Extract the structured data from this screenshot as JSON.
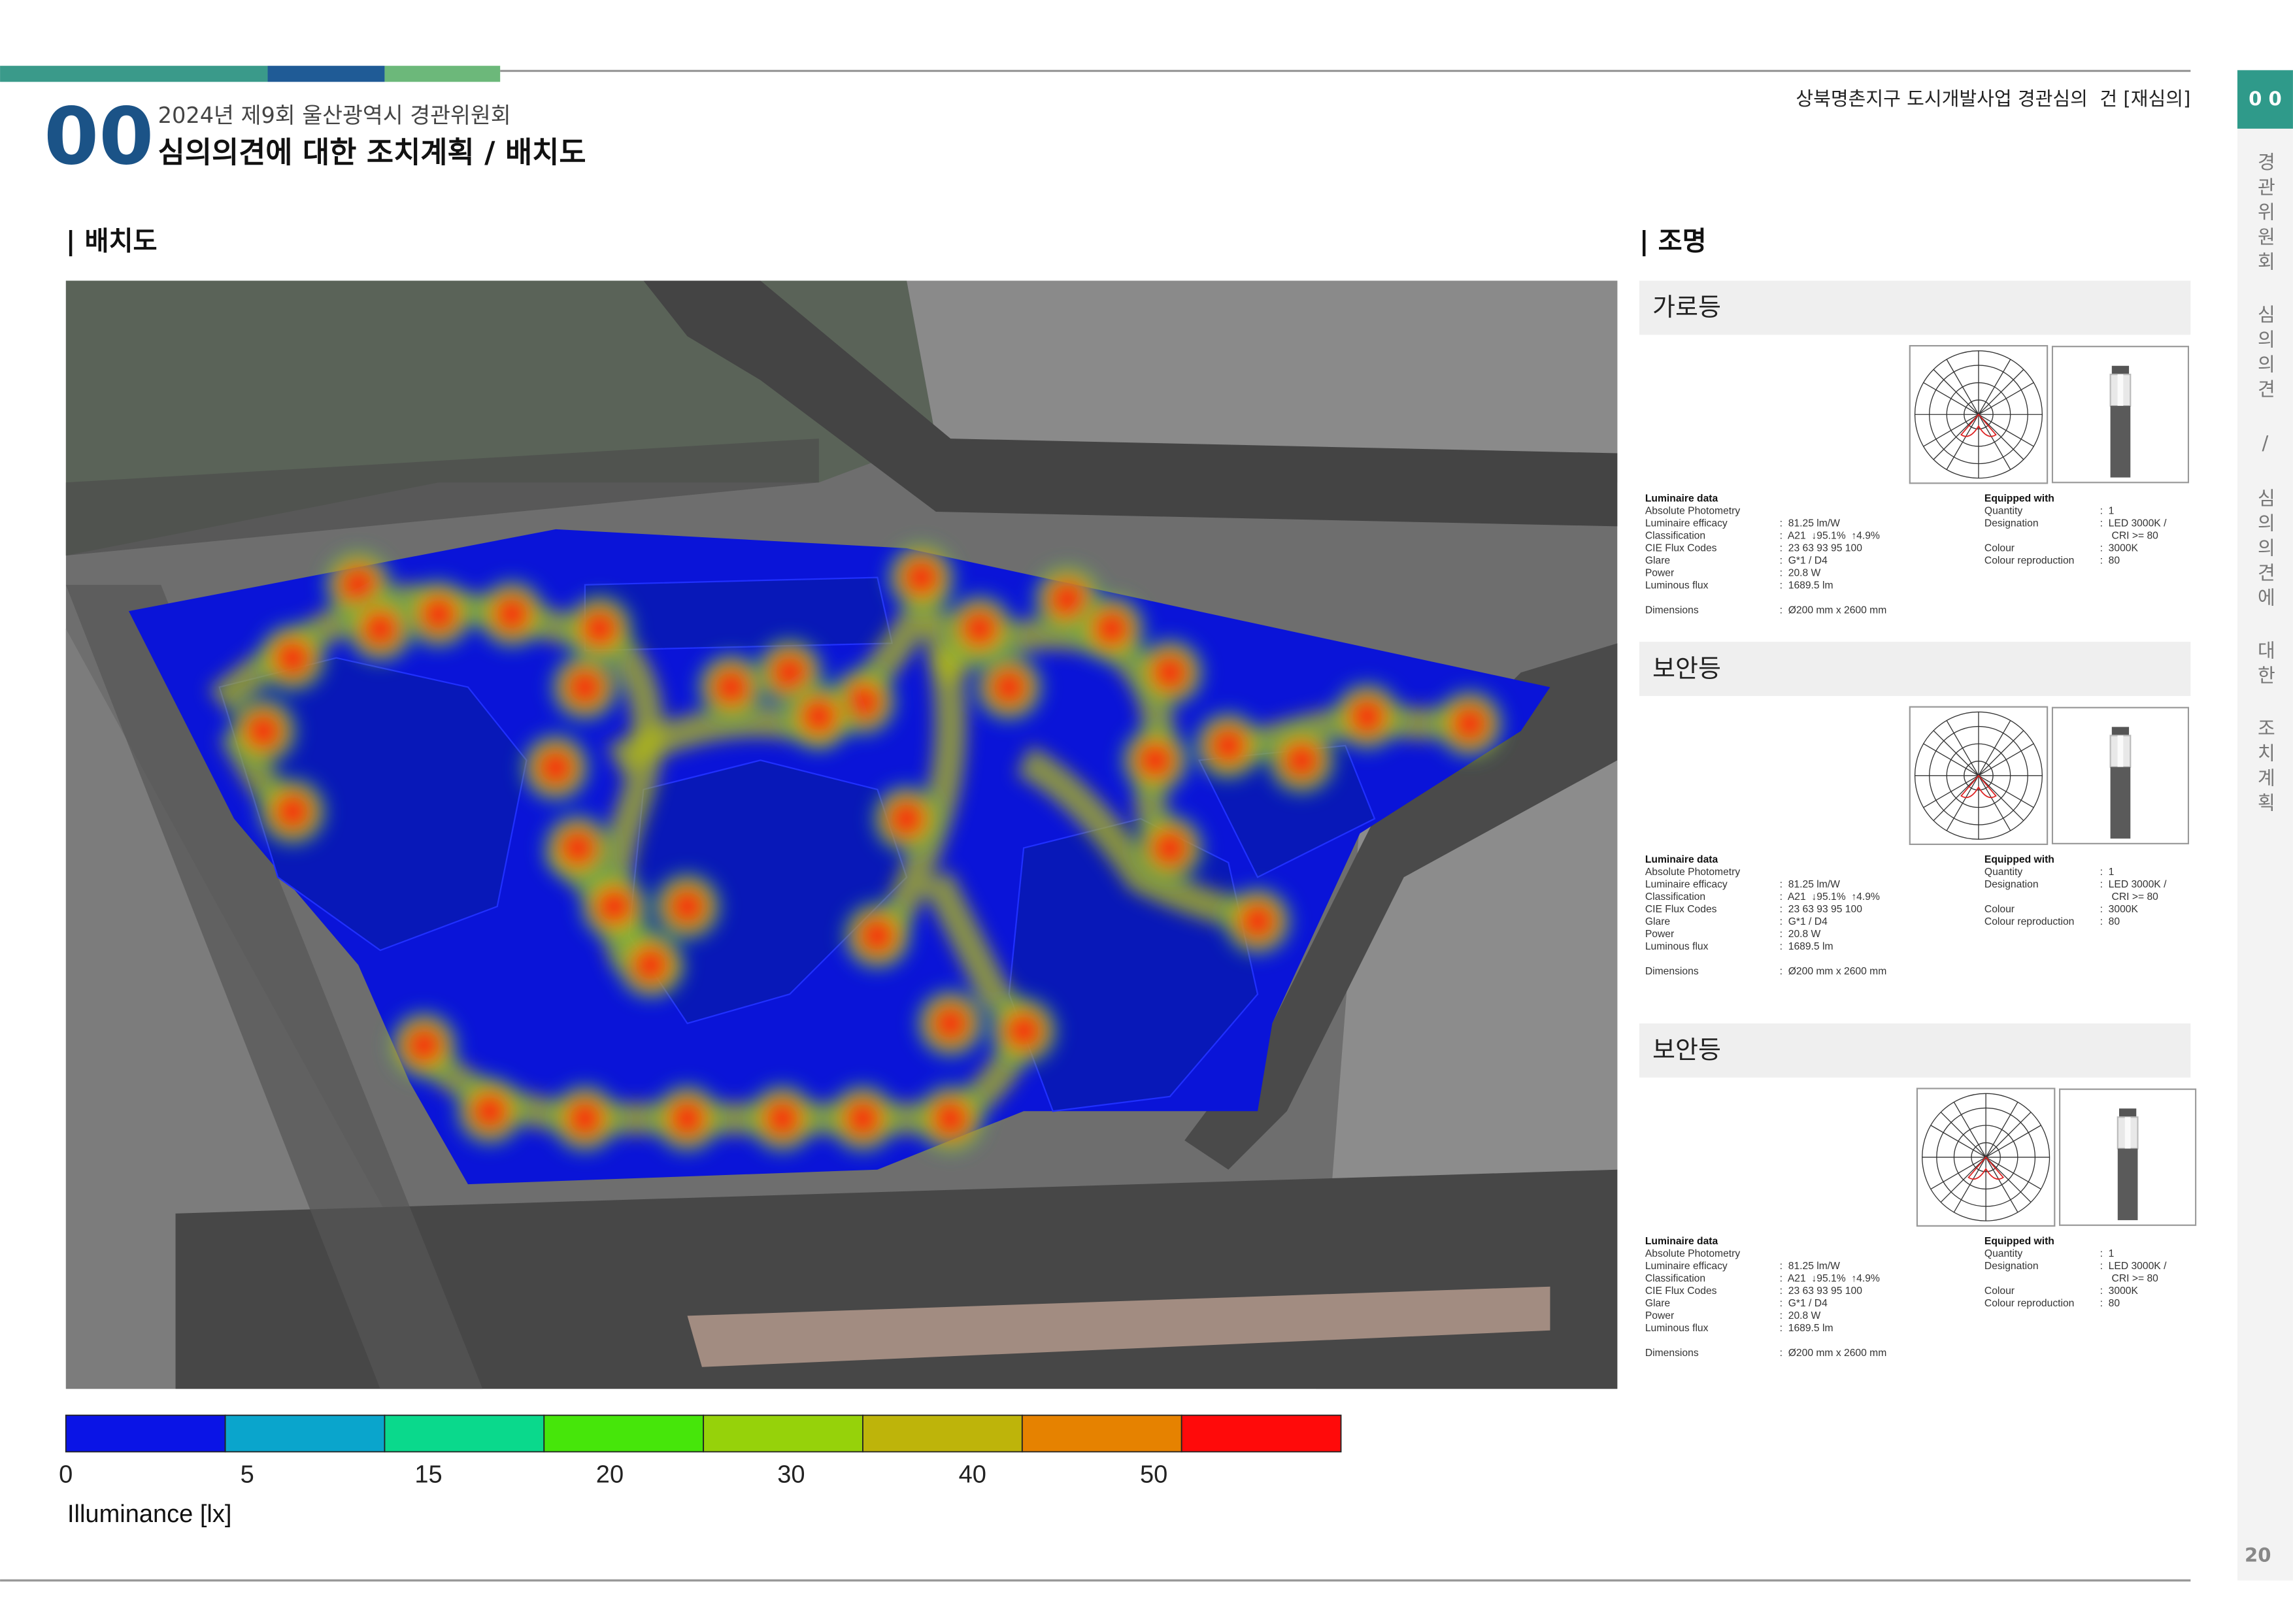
{
  "header": {
    "number": "00",
    "subtitle": "2024년 제9회 울산광역시 경관위원회",
    "title": "심의의견에 대한 조치계획 / 배치도",
    "project": "상북명촌지구 도시개발사업 경관심의  건 [재심의]"
  },
  "sidebar": {
    "tab": "0 0",
    "text": "경관위원회 심의의견 / 심의의견에 대한 조치계획",
    "page": "20"
  },
  "sections": {
    "layout": "| 배치도",
    "lighting": "| 조명"
  },
  "legend": {
    "colors": [
      "#0a14e6",
      "#0aa5cc",
      "#0ad98c",
      "#46e60a",
      "#96d20a",
      "#beb40a",
      "#e68200",
      "#ff0a0a"
    ],
    "ticks": [
      "0",
      "5",
      "15",
      "20",
      "30",
      "40",
      "50"
    ],
    "label": "Illuminance [lx]"
  },
  "lights": [
    {
      "name": "가로등",
      "luminaire": {
        "heading": "Luminaire data",
        "rows": [
          {
            "label": "Absolute Photometry"
          },
          {
            "label": "Luminaire efficacy",
            "value": ":  81.25 lm/W"
          },
          {
            "label": "Classification",
            "value": ":  A21  ↓95.1%  ↑4.9%"
          },
          {
            "label": "CIE Flux Codes",
            "value": ":  23 63 93 95 100"
          },
          {
            "label": "Glare",
            "value": ":  G*1 / D4"
          },
          {
            "label": "Power",
            "value": ":  20.8 W"
          },
          {
            "label": "Luminous flux",
            "value": ":  1689.5 lm"
          }
        ],
        "dimensions": {
          "label": "Dimensions",
          "value": ":  Ø200 mm x 2600 mm"
        }
      },
      "equipped": {
        "heading": "Equipped with",
        "rows": [
          {
            "label": "Quantity",
            "value": [
              ":  1"
            ]
          },
          {
            "label": "Designation",
            "value": [
              ":  LED 3000K /",
              "CRI >= 80"
            ]
          },
          {
            "label": "Colour",
            "value": [
              ":  3000K"
            ]
          },
          {
            "label": "Colour reproduction",
            "value": [
              ":  80"
            ]
          }
        ]
      }
    },
    {
      "name": "보안등",
      "luminaire": {
        "heading": "Luminaire data",
        "rows": [
          {
            "label": "Absolute Photometry"
          },
          {
            "label": "Luminaire efficacy",
            "value": ":  81.25 lm/W"
          },
          {
            "label": "Classification",
            "value": ":  A21  ↓95.1%  ↑4.9%"
          },
          {
            "label": "CIE Flux Codes",
            "value": ":  23 63 93 95 100"
          },
          {
            "label": "Glare",
            "value": ":  G*1 / D4"
          },
          {
            "label": "Power",
            "value": ":  20.8 W"
          },
          {
            "label": "Luminous flux",
            "value": ":  1689.5 lm"
          }
        ],
        "dimensions": {
          "label": "Dimensions",
          "value": ":  Ø200 mm x 2600 mm"
        }
      },
      "equipped": {
        "heading": "Equipped with",
        "rows": [
          {
            "label": "Quantity",
            "value": [
              ":  1"
            ]
          },
          {
            "label": "Designation",
            "value": [
              ":  LED 3000K /",
              "CRI >= 80"
            ]
          },
          {
            "label": "Colour",
            "value": [
              ":  3000K"
            ]
          },
          {
            "label": "Colour reproduction",
            "value": [
              ":  80"
            ]
          }
        ]
      }
    },
    {
      "name": "보안등",
      "luminaire": {
        "heading": "Luminaire data",
        "rows": [
          {
            "label": "Absolute Photometry"
          },
          {
            "label": "Luminaire efficacy",
            "value": ":  81.25 lm/W"
          },
          {
            "label": "Classification",
            "value": ":  A21  ↓95.1%  ↑4.9%"
          },
          {
            "label": "CIE Flux Codes",
            "value": ":  23 63 93 95 100"
          },
          {
            "label": "Glare",
            "value": ":  G*1 / D4"
          },
          {
            "label": "Power",
            "value": ":  20.8 W"
          },
          {
            "label": "Luminous flux",
            "value": ":  1689.5 lm"
          }
        ],
        "dimensions": {
          "label": "Dimensions",
          "value": ":  Ø200 mm x 2600 mm"
        }
      },
      "equipped": {
        "heading": "Equipped with",
        "rows": [
          {
            "label": "Quantity",
            "value": [
              ":  1"
            ]
          },
          {
            "label": "Designation",
            "value": [
              ":  LED 3000K /",
              "CRI >= 80"
            ]
          },
          {
            "label": "Colour",
            "value": [
              ":  3000K"
            ]
          },
          {
            "label": "Colour reproduction",
            "value": [
              ":  80"
            ]
          }
        ]
      }
    }
  ]
}
